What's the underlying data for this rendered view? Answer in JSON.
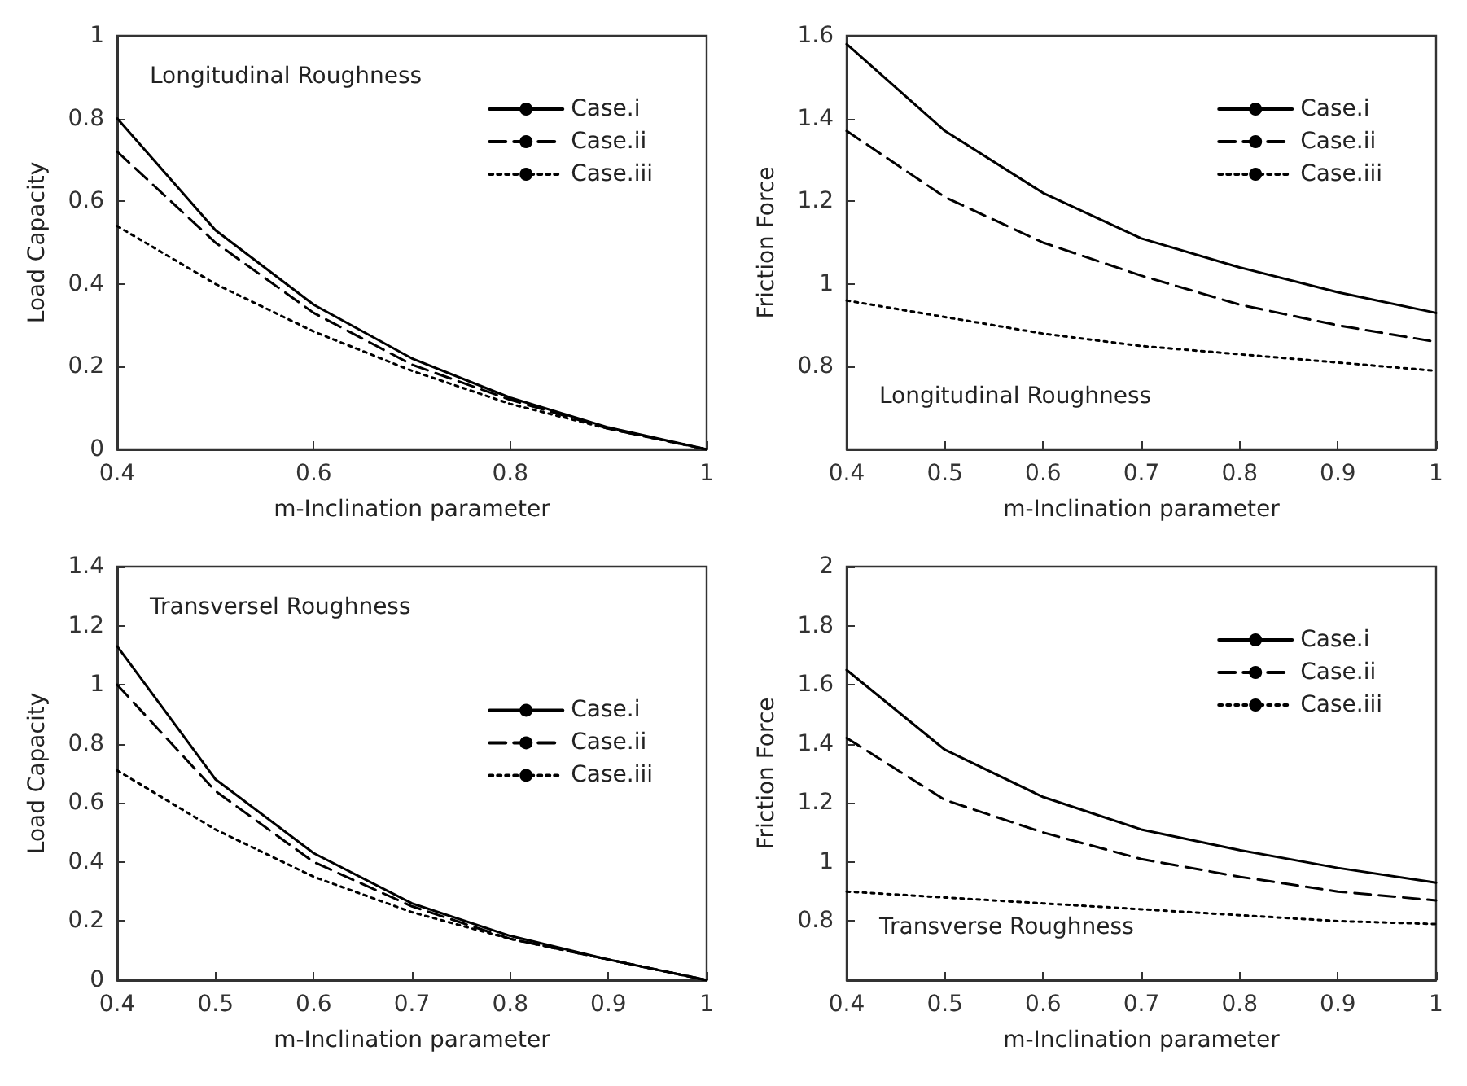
{
  "chart_data": [
    {
      "type": "line",
      "xlabel": "m-Inclination parameter",
      "ylabel": "Load Capacity",
      "annotations": [
        "Longitudinal Roughness"
      ],
      "x": [
        0.4,
        0.5,
        0.6,
        0.7,
        0.8,
        0.9,
        1
      ],
      "xlim": [
        0.4,
        1
      ],
      "xticks": [
        0.4,
        0.6,
        0.8,
        1
      ],
      "ylim": [
        0,
        1
      ],
      "yticks": [
        0,
        0.2,
        0.4,
        0.6,
        0.8,
        1
      ],
      "legend": "top right",
      "series": [
        {
          "name": "Case.i",
          "color": "#000000",
          "line_style": "solid",
          "values": [
            0.8,
            0.53,
            0.35,
            0.22,
            0.125,
            0.053,
            0
          ]
        },
        {
          "name": "Case.ii",
          "color": "#000000",
          "line_style": "dashed",
          "values": [
            0.72,
            0.5,
            0.33,
            0.205,
            0.12,
            0.05,
            0
          ]
        },
        {
          "name": "Case.iii",
          "color": "#000000",
          "line_style": "dotted",
          "values": [
            0.54,
            0.4,
            0.285,
            0.19,
            0.11,
            0.05,
            0
          ]
        }
      ]
    },
    {
      "type": "line",
      "xlabel": "m-Inclination parameter",
      "ylabel": "Friction Force",
      "annotations": [
        "Longitudinal Roughness"
      ],
      "x": [
        0.4,
        0.5,
        0.6,
        0.7,
        0.8,
        0.9,
        1
      ],
      "xlim": [
        0.4,
        1
      ],
      "xticks": [
        0.4,
        0.5,
        0.6,
        0.7,
        0.8,
        0.9,
        1
      ],
      "ylim": [
        0.6,
        1.6
      ],
      "yticks": [
        {
          "value": 0.6,
          "label": null
        },
        0.8,
        1,
        1.2,
        1.4,
        1.6
      ],
      "legend": "top right",
      "series": [
        {
          "name": "Case.i",
          "color": "#000000",
          "line_style": "solid",
          "values": [
            1.58,
            1.37,
            1.22,
            1.11,
            1.04,
            0.98,
            0.93
          ]
        },
        {
          "name": "Case.ii",
          "color": "#000000",
          "line_style": "dashed",
          "values": [
            1.37,
            1.21,
            1.1,
            1.02,
            0.95,
            0.9,
            0.86
          ]
        },
        {
          "name": "Case.iii",
          "color": "#000000",
          "line_style": "dotted",
          "values": [
            0.96,
            0.92,
            0.88,
            0.85,
            0.83,
            0.81,
            0.79
          ]
        }
      ]
    },
    {
      "type": "line",
      "xlabel": "m-Inclination parameter",
      "ylabel": "Load Capacity",
      "annotations": [
        "Transversel Roughness"
      ],
      "x": [
        0.4,
        0.5,
        0.6,
        0.7,
        0.8,
        0.9,
        1
      ],
      "xlim": [
        0.4,
        1
      ],
      "xticks": [
        0.4,
        0.5,
        0.6,
        0.7,
        0.8,
        0.9,
        1
      ],
      "ylim": [
        0,
        1.4
      ],
      "yticks": [
        0,
        0.2,
        0.4,
        0.6,
        0.8,
        1,
        1.2,
        1.4
      ],
      "legend": "right",
      "series": [
        {
          "name": "Case.i",
          "color": "#000000",
          "line_style": "solid",
          "values": [
            1.13,
            0.68,
            0.43,
            0.26,
            0.15,
            0.07,
            0
          ]
        },
        {
          "name": "Case.ii",
          "color": "#000000",
          "line_style": "dashed",
          "values": [
            1.0,
            0.64,
            0.4,
            0.25,
            0.14,
            0.07,
            0
          ]
        },
        {
          "name": "Case.iii",
          "color": "#000000",
          "line_style": "dotted",
          "values": [
            0.71,
            0.51,
            0.35,
            0.23,
            0.14,
            0.07,
            0
          ]
        }
      ]
    },
    {
      "type": "line",
      "xlabel": "m-Inclination parameter",
      "ylabel": "Friction Force",
      "annotations": [
        "Transverse Roughness"
      ],
      "x": [
        0.4,
        0.5,
        0.6,
        0.7,
        0.8,
        0.9,
        1
      ],
      "xlim": [
        0.4,
        1
      ],
      "xticks": [
        0.4,
        0.5,
        0.6,
        0.7,
        0.8,
        0.9,
        1
      ],
      "ylim": [
        0.6,
        2
      ],
      "yticks": [
        {
          "value": 0.6,
          "label": null
        },
        0.8,
        1,
        1.2,
        1.4,
        1.6,
        1.8,
        2
      ],
      "legend": "top right",
      "series": [
        {
          "name": "Case.i",
          "color": "#000000",
          "line_style": "solid",
          "values": [
            1.65,
            1.38,
            1.22,
            1.11,
            1.04,
            0.98,
            0.93
          ]
        },
        {
          "name": "Case.ii",
          "color": "#000000",
          "line_style": "dashed",
          "values": [
            1.42,
            1.21,
            1.1,
            1.01,
            0.95,
            0.9,
            0.87
          ]
        },
        {
          "name": "Case.iii",
          "color": "#000000",
          "line_style": "dotted",
          "values": [
            0.9,
            0.88,
            0.86,
            0.84,
            0.82,
            0.8,
            0.79
          ]
        }
      ]
    }
  ]
}
